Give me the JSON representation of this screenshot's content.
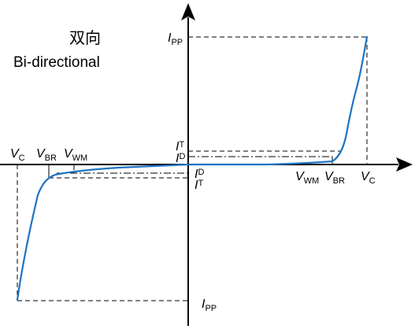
{
  "title": {
    "cn": "双向",
    "en": "Bi-directional"
  },
  "labels": {
    "ipp_top": {
      "main": "I",
      "sub": "PP"
    },
    "ipp_bottom": {
      "main": "I",
      "sub": "PP"
    },
    "it_top": {
      "main": "I",
      "sub": "T"
    },
    "id_top": {
      "main": "I",
      "sub": "D"
    },
    "id_bottom": {
      "main": "I",
      "sub": "D"
    },
    "it_bottom": {
      "main": "I",
      "sub": "T"
    },
    "vc_left": {
      "main": "V",
      "sub": "C"
    },
    "vbr_left": {
      "main": "V",
      "sub": "BR"
    },
    "vwm_left": {
      "main": "V",
      "sub": "WM"
    },
    "vwm_right": {
      "main": "V",
      "sub": "WM"
    },
    "vbr_right": {
      "main": "V",
      "sub": "BR"
    },
    "vc_right": {
      "main": "V",
      "sub": "C"
    }
  },
  "colors": {
    "curve": "#1e74c2",
    "axes": "#000000"
  }
}
